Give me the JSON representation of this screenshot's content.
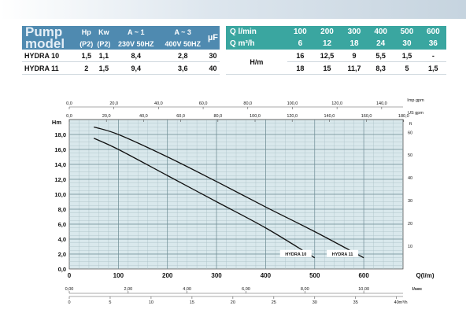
{
  "spec_table": {
    "title_line1": "Pump",
    "title_line2": "model",
    "headers": [
      "Hp",
      "Kw",
      "A ~ 1",
      "A ~ 3",
      "µF"
    ],
    "subheaders": [
      "(P2)",
      "(P2)",
      "230V 50HZ",
      "400V 50HZ"
    ],
    "rows": [
      {
        "model": "HYDRA 10",
        "hp": "1,5",
        "kw": "1,1",
        "a1": "8,4",
        "a3": "2,8",
        "uf": "30"
      },
      {
        "model": "HYDRA 11",
        "hp": "2",
        "kw": "1,5",
        "a1": "9,4",
        "a3": "3,6",
        "uf": "40"
      }
    ]
  },
  "flow_table": {
    "q_lmin_label": "Q l/min",
    "q_m3h_label": "Q m³/h",
    "hm_label": "H/m",
    "q_lmin": [
      "100",
      "200",
      "300",
      "400",
      "500",
      "600"
    ],
    "q_m3h": [
      "6",
      "12",
      "18",
      "24",
      "30",
      "36"
    ],
    "h_rows": [
      [
        "16",
        "12,5",
        "9",
        "5,5",
        "1,5",
        "-"
      ],
      [
        "18",
        "15",
        "11,7",
        "8,3",
        "5",
        "1,5"
      ]
    ]
  },
  "chart_data": {
    "type": "line",
    "x_unit_label": "Q(l/m)",
    "y_unit_label": "Hm",
    "right_unit_label": "ft",
    "top_unit_label": "Imp gpm",
    "second_top_unit_label": "US gpm",
    "lsec_unit_label": "l/sec",
    "m3h_unit_label": "m³/h",
    "xlim": [
      0,
      680
    ],
    "ylim": [
      0,
      20
    ],
    "x_ticks": [
      "0",
      "100",
      "200",
      "300",
      "400",
      "500",
      "600"
    ],
    "y_ticks": [
      "0,0",
      "2,0",
      "4,0",
      "6,0",
      "8,0",
      "10,0",
      "12,0",
      "14,0",
      "16,0",
      "18,0"
    ],
    "ft_ticks": [
      "10",
      "20",
      "30",
      "40",
      "50",
      "60"
    ],
    "imp_gpm_ticks": [
      "0,0",
      "20,0",
      "40,0",
      "60,0",
      "80,0",
      "100,0",
      "120,0",
      "140,0"
    ],
    "us_gpm_ticks": [
      "0,0",
      "20,0",
      "40,0",
      "60,0",
      "80,0",
      "100,0",
      "120,0",
      "140,0",
      "160,0",
      "180,0"
    ],
    "lsec_ticks": [
      "0,00",
      "2,00",
      "4,00",
      "6,00",
      "8,00",
      "10,00"
    ],
    "m3h_ticks": [
      "0",
      "5",
      "10",
      "15",
      "20",
      "25",
      "30",
      "35",
      "40"
    ],
    "grid": true,
    "series": [
      {
        "name": "HYDRA 10",
        "x": [
          50,
          100,
          200,
          300,
          400,
          500
        ],
        "y": [
          17.5,
          16,
          12.5,
          9,
          5.5,
          1.5
        ]
      },
      {
        "name": "HYDRA 11",
        "x": [
          50,
          100,
          200,
          300,
          400,
          500,
          600
        ],
        "y": [
          19,
          18,
          15,
          11.7,
          8.3,
          5,
          1.5
        ]
      }
    ]
  }
}
